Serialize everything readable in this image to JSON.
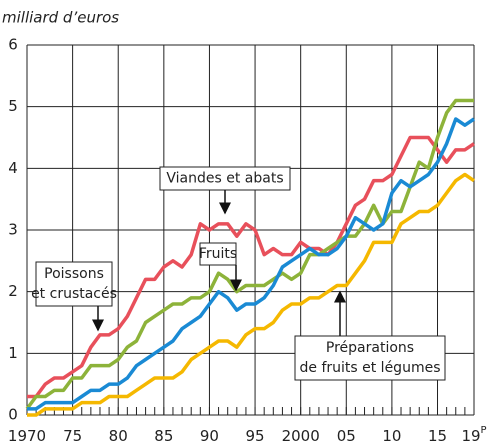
{
  "chart_data": {
    "type": "line",
    "y_label": "milliard d’euros",
    "x": [
      1970,
      1971,
      1972,
      1973,
      1974,
      1975,
      1976,
      1977,
      1978,
      1979,
      1980,
      1981,
      1982,
      1983,
      1984,
      1985,
      1986,
      1987,
      1988,
      1989,
      1990,
      1991,
      1992,
      1993,
      1994,
      1995,
      1996,
      1997,
      1998,
      1999,
      2000,
      2001,
      2002,
      2003,
      2004,
      2005,
      2006,
      2007,
      2008,
      2009,
      2010,
      2011,
      2012,
      2013,
      2014,
      2015,
      2016,
      2017,
      2018,
      2019
    ],
    "xlim": [
      1970,
      2019
    ],
    "xticks": [
      1970,
      {
        "value": 1975,
        "label": "75"
      },
      {
        "value": 1980,
        "label": "80"
      },
      {
        "value": 1985,
        "label": "85"
      },
      {
        "value": 1990,
        "label": "90"
      },
      {
        "value": 1995,
        "label": "95"
      },
      2000,
      {
        "value": 2005,
        "label": "05"
      },
      {
        "value": 2010,
        "label": "10"
      },
      {
        "value": 2015,
        "label": "15"
      },
      {
        "value": 2019,
        "label": "19",
        "superscript": "P"
      }
    ],
    "ylim": [
      0,
      6
    ],
    "yticks": [
      0,
      1,
      2,
      3,
      4,
      5,
      6
    ],
    "grid": true,
    "series": [
      {
        "label": [
          "Viandes et abats"
        ],
        "color": "#e8505b",
        "values": [
          0.3,
          0.3,
          0.5,
          0.6,
          0.6,
          0.7,
          0.8,
          1.1,
          1.3,
          1.3,
          1.4,
          1.6,
          1.9,
          2.2,
          2.2,
          2.4,
          2.5,
          2.4,
          2.6,
          3.1,
          3.0,
          3.1,
          3.1,
          2.9,
          3.1,
          3.0,
          2.6,
          2.7,
          2.6,
          2.6,
          2.8,
          2.7,
          2.7,
          2.6,
          2.8,
          3.1,
          3.4,
          3.5,
          3.8,
          3.8,
          3.9,
          4.2,
          4.5,
          4.5,
          4.5,
          4.3,
          4.1,
          4.3,
          4.3,
          4.4
        ]
      },
      {
        "label": [
          "Fruits"
        ],
        "color": "#8db33a",
        "values": [
          0.1,
          0.3,
          0.3,
          0.4,
          0.4,
          0.6,
          0.6,
          0.8,
          0.8,
          0.8,
          0.9,
          1.1,
          1.2,
          1.5,
          1.6,
          1.7,
          1.8,
          1.8,
          1.9,
          1.9,
          2.0,
          2.3,
          2.2,
          2.0,
          2.1,
          2.1,
          2.1,
          2.2,
          2.3,
          2.2,
          2.3,
          2.6,
          2.6,
          2.7,
          2.8,
          2.9,
          2.9,
          3.1,
          3.4,
          3.1,
          3.3,
          3.3,
          3.7,
          4.1,
          4.0,
          4.5,
          4.9,
          5.1,
          5.1,
          5.1
        ]
      },
      {
        "label": [
          "Poissons",
          "et crustacés"
        ],
        "color": "#1a8ad4",
        "values": [
          0.1,
          0.1,
          0.2,
          0.2,
          0.2,
          0.2,
          0.3,
          0.4,
          0.4,
          0.5,
          0.5,
          0.6,
          0.8,
          0.9,
          1.0,
          1.1,
          1.2,
          1.4,
          1.5,
          1.6,
          1.8,
          2.0,
          1.9,
          1.7,
          1.8,
          1.8,
          1.9,
          2.1,
          2.4,
          2.5,
          2.6,
          2.7,
          2.6,
          2.6,
          2.7,
          2.9,
          3.2,
          3.1,
          3.0,
          3.1,
          3.6,
          3.8,
          3.7,
          3.8,
          3.9,
          4.1,
          4.4,
          4.8,
          4.7,
          4.8
        ]
      },
      {
        "label": [
          "Préparations",
          "de fruits et légumes"
        ],
        "color": "#f5b800",
        "values": [
          0.0,
          0.0,
          0.1,
          0.1,
          0.1,
          0.1,
          0.2,
          0.2,
          0.2,
          0.3,
          0.3,
          0.3,
          0.4,
          0.5,
          0.6,
          0.6,
          0.6,
          0.7,
          0.9,
          1.0,
          1.1,
          1.2,
          1.2,
          1.1,
          1.3,
          1.4,
          1.4,
          1.5,
          1.7,
          1.8,
          1.8,
          1.9,
          1.9,
          2.0,
          2.1,
          2.1,
          2.3,
          2.5,
          2.8,
          2.8,
          2.8,
          3.1,
          3.2,
          3.3,
          3.3,
          3.4,
          3.6,
          3.8,
          3.9,
          3.8
        ]
      }
    ]
  }
}
